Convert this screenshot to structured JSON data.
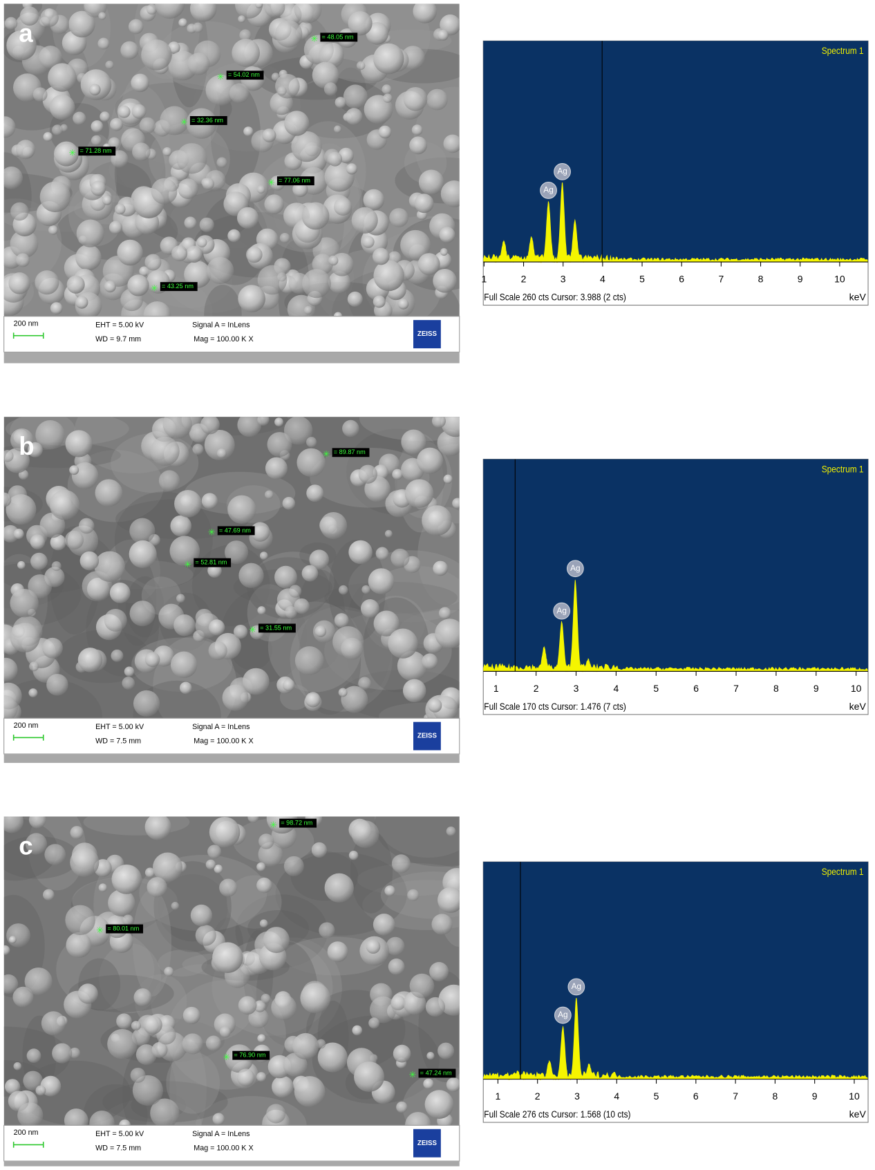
{
  "panels": [
    {
      "label": "a",
      "sem": {
        "measurements": [
          "= 48.05 nm",
          "= 54.02 nm",
          "= 32.36 nm",
          "= 71.28 nm",
          "= 77.06 nm",
          "= 43.25 nm"
        ],
        "scale_bar": "200 nm",
        "eht": "EHT = 5.00 kV",
        "wd": "WD = 9.7 mm",
        "signal": "Signal A = InLens",
        "mag": "Mag = 100.00 K X",
        "logo": "ZEISS"
      },
      "spectrum": {
        "type": "spectrum",
        "title": "Spectrum 1",
        "xlim": [
          0.98,
          10.72
        ],
        "xticks": [
          1,
          2,
          3,
          4,
          5,
          6,
          7,
          8,
          9,
          10
        ],
        "x_unit": "keV",
        "footer": "Full Scale 260 cts Cursor: 3.988 (2 cts)",
        "peaks": {
          "x": [
            1.5,
            2.2,
            2.63,
            2.98,
            3.3
          ],
          "values": [
            26,
            30,
            72,
            94,
            50
          ],
          "labels": [
            null,
            null,
            "Ag",
            "Ag",
            null
          ]
        }
      }
    },
    {
      "label": "b",
      "sem": {
        "measurements": [
          "= 89.87 nm",
          "= 47.69 nm",
          "= 52.81 nm",
          "= 31.55 nm"
        ],
        "scale_bar": "200 nm",
        "eht": "EHT = 5.00 kV",
        "wd": "WD = 7.5 mm",
        "signal": "Signal A = InLens",
        "mag": "Mag = 100.00 K X",
        "logo": "ZEISS"
      },
      "spectrum": {
        "type": "spectrum",
        "title": "Spectrum 1",
        "xlim": [
          0.68,
          10.3
        ],
        "xticks": [
          1,
          2,
          3,
          4,
          5,
          6,
          7,
          8,
          9,
          10
        ],
        "x_unit": "keV",
        "footer": "Full Scale 170 cts Cursor: 1.476 (7 cts)",
        "peaks": {
          "x": [
            2.2,
            2.64,
            2.98,
            3.3
          ],
          "values": [
            20,
            40,
            74,
            10
          ],
          "labels": [
            null,
            "Ag",
            "Ag",
            null
          ]
        }
      }
    },
    {
      "label": "c",
      "sem": {
        "measurements": [
          "= 98.72 nm",
          "= 80.01 nm",
          "= 76.90 nm",
          "= 47.24 nm"
        ],
        "scale_bar": "200 nm",
        "eht": "EHT = 5.00 kV",
        "wd": "WD = 7.5 mm",
        "signal": "Signal A = InLens",
        "mag": "Mag = 100.00 K X",
        "logo": "ZEISS"
      },
      "spectrum": {
        "type": "spectrum",
        "title": "Spectrum 1",
        "xlim": [
          0.63,
          10.35
        ],
        "xticks": [
          1,
          2,
          3,
          4,
          5,
          6,
          7,
          8,
          9,
          10
        ],
        "x_unit": "keV",
        "footer": "Full Scale 276 cts Cursor: 1.568 (10 cts)",
        "peaks": {
          "x": [
            1.5,
            2.3,
            2.64,
            2.98,
            3.3
          ],
          "values": [
            10,
            24,
            68,
            104,
            20
          ],
          "labels": [
            null,
            null,
            "Ag",
            "Ag",
            null
          ]
        }
      }
    }
  ]
}
